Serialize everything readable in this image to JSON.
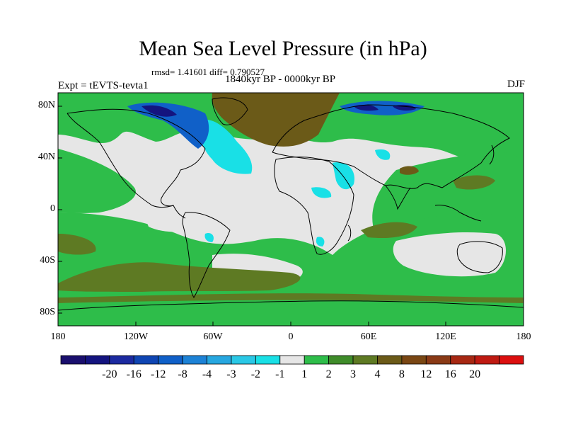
{
  "title": "Mean Sea Level Pressure (in hPa)",
  "stats_text": "rmsd= 1.41601 diff= 0.790527",
  "period_text": "1840kyr BP - 0000kyr BP",
  "experiment_text": "Expt = tEVTS-tevta1",
  "season_text": "DJF",
  "lat_labels": [
    "80N",
    "40N",
    "0",
    "40S",
    "80S"
  ],
  "lon_labels": [
    "180",
    "120W",
    "60W",
    "0",
    "60E",
    "120E",
    "180"
  ],
  "colorbar": {
    "colors": [
      "#1a0f6e",
      "#14147f",
      "#1c2aa0",
      "#0f45b3",
      "#1060c8",
      "#1d82d6",
      "#27a7e0",
      "#2ac8e6",
      "#19e0e6",
      "#e6e6e6",
      "#2ebd4a",
      "#3f8c2a",
      "#5e7a23",
      "#6b5a18",
      "#7a4714",
      "#8a3a16",
      "#a72813",
      "#bf1a12",
      "#dc0f0f"
    ],
    "labels": [
      "-20",
      "-16",
      "-12",
      "-8",
      "-4",
      "-3",
      "-2",
      "-1",
      "1",
      "2",
      "3",
      "4",
      "8",
      "12",
      "16",
      "20"
    ]
  },
  "map_colors": {
    "neutral": "#e6e6e6",
    "green": "#2ebd4a",
    "olive": "#5e7a23",
    "brown": "#6b5a18",
    "lightcyan": "#19e0e6",
    "blue": "#1060c8",
    "navy": "#14147f",
    "coast": "#000000"
  }
}
